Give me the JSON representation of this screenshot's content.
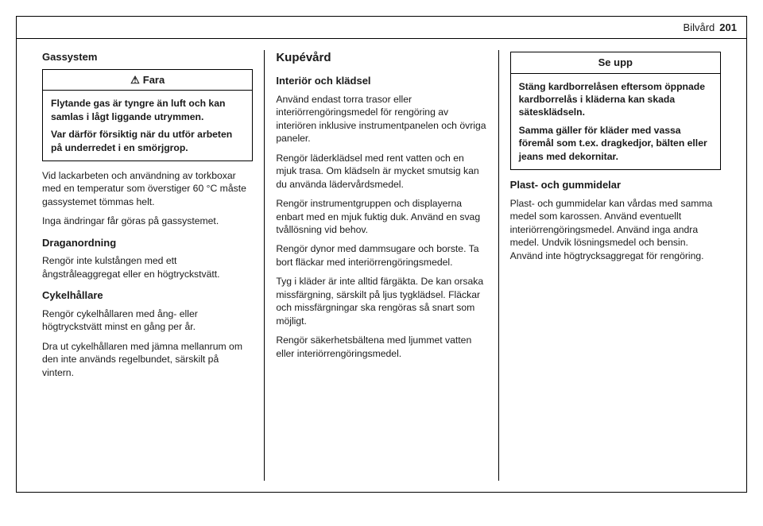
{
  "header": {
    "title": "Bilvård",
    "page_number": "201"
  },
  "col1": {
    "h_gassystem": "Gassystem",
    "fara": {
      "label": "Fara",
      "p1": "Flytande gas är tyngre än luft och kan samlas i lågt liggande utrymmen.",
      "p2": "Var därför försiktig när du utför arbeten på underredet i en smörjgrop."
    },
    "p_lack": "Vid lackarbeten och användning av torkboxar med en temperatur som överstiger 60 °C måste gassystemet tömmas helt.",
    "p_andr": "Inga ändringar får göras på gassystemet.",
    "h_drag": "Draganordning",
    "p_drag": "Rengör inte kulstången med ett ångstråleaggregat eller en högtryckstvätt.",
    "h_cykel": "Cykelhållare",
    "p_cykel1": "Rengör cykelhållaren med ång- eller högtryckstvätt minst en gång per år.",
    "p_cykel2": "Dra ut cykelhållaren med jämna mellanrum om den inte används regelbundet, särskilt på vintern."
  },
  "col2": {
    "h_kupe": "Kupévård",
    "h_interior": "Interiör och klädsel",
    "p1": "Använd endast torra trasor eller interiörrengöringsmedel för rengöring av interiören inklusive instrumentpanelen och övriga paneler.",
    "p2": "Rengör läderklädsel med rent vatten och en mjuk trasa. Om klädseln är mycket smutsig kan du använda lädervårdsmedel.",
    "p3": "Rengör instrumentgruppen och displayerna enbart med en mjuk fuktig duk. Använd en svag tvållösning vid behov.",
    "p4": "Rengör dynor med dammsugare och borste. Ta bort fläckar med interiörrengöringsmedel.",
    "p5": "Tyg i kläder är inte alltid färgäkta. De kan orsaka missfärgning, särskilt på ljus tygklädsel. Fläckar och missfärgningar ska rengöras så snart som möjligt.",
    "p6": "Rengör säkerhetsbältena med ljummet vatten eller interiörrengöringsmedel."
  },
  "col3": {
    "seupp": {
      "label": "Se upp",
      "p1": "Stäng kardborrelåsen eftersom öppnade kardborrelås i kläderna kan skada sätesklädseln.",
      "p2": "Samma gäller för kläder med vassa föremål som t.ex. dragkedjor, bälten eller jeans med dekornitar."
    },
    "h_plast": "Plast- och gummidelar",
    "p_plast1": "Plast- och gummidelar kan vårdas med samma medel som karossen. Använd eventuellt interiörrengöringsmedel. Använd inga andra medel. Undvik lösningsmedel och bensin. Använd inte högtrycksaggregat för rengöring."
  }
}
